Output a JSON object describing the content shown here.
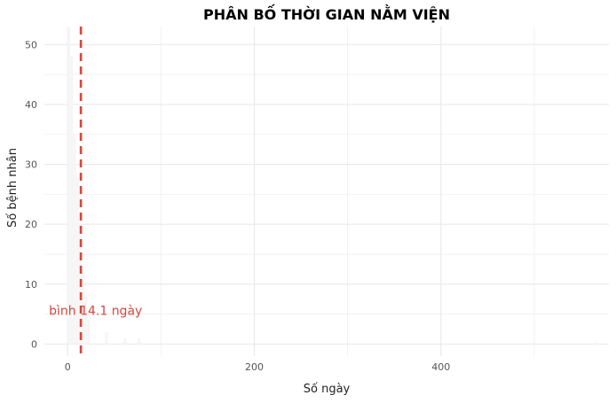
{
  "chart_data": {
    "type": "bar",
    "title": "PHÂN BỐ THỜI GIAN NẰM VIỆN",
    "xlabel": "Số ngày",
    "ylabel": "Số bệnh nhân",
    "xlim": [
      -25,
      580
    ],
    "ylim": [
      -2,
      53
    ],
    "x_ticks": [
      0,
      200,
      400
    ],
    "y_ticks": [
      0,
      10,
      20,
      30,
      40,
      50
    ],
    "grid": true,
    "bars": [
      {
        "x": 0,
        "width": 3,
        "value": 53
      },
      {
        "x": 3,
        "width": 3,
        "value": 48
      },
      {
        "x": 6,
        "width": 3,
        "value": 35
      },
      {
        "x": 9,
        "width": 3,
        "value": 28
      },
      {
        "x": 12,
        "width": 3,
        "value": 20
      },
      {
        "x": 15,
        "width": 3,
        "value": 12
      },
      {
        "x": 18,
        "width": 3,
        "value": 8
      },
      {
        "x": 21,
        "width": 3,
        "value": 4
      },
      {
        "x": 40,
        "width": 3,
        "value": 2
      },
      {
        "x": 60,
        "width": 3,
        "value": 1
      },
      {
        "x": 75,
        "width": 3,
        "value": 1
      },
      {
        "x": 565,
        "width": 3,
        "value": 0.3
      }
    ],
    "mean_line": {
      "x": 14.1,
      "color": "#d9463a"
    },
    "annotation": {
      "text": "bình 14.1 ngày",
      "x": 14.1,
      "y": 5
    },
    "bar_color": "#f6f6f6",
    "grid_color": "#e9e9e9"
  }
}
